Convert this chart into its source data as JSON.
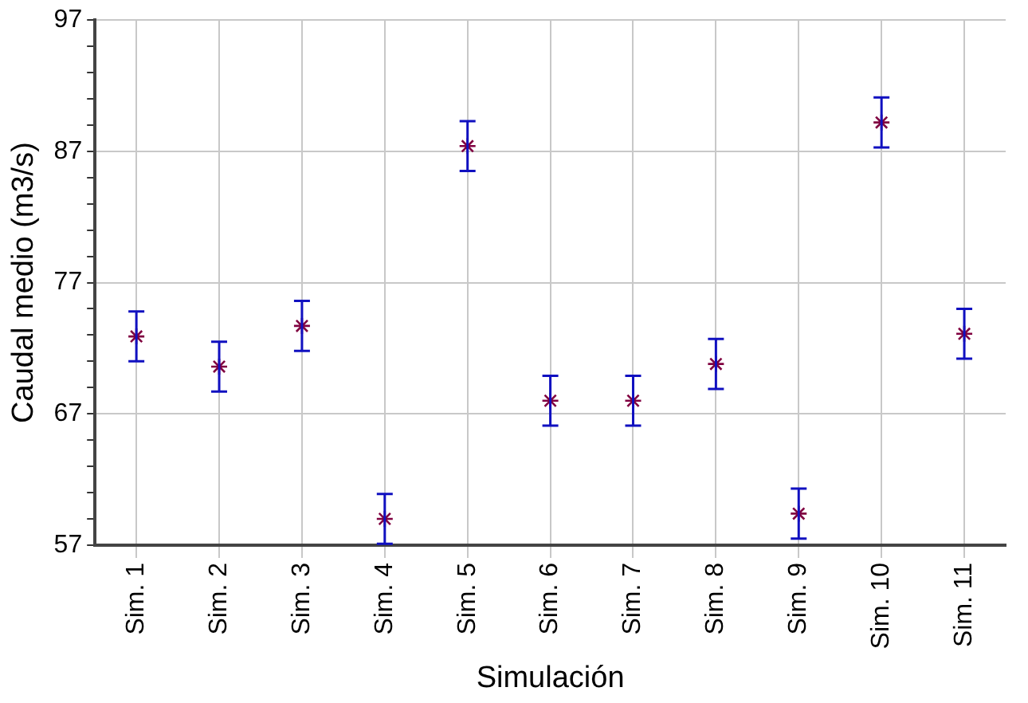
{
  "chart_data": {
    "type": "scatter",
    "xlabel": "Simulación",
    "ylabel": "Caudal medio (m3/s)",
    "categories": [
      "Sim. 1",
      "Sim. 2",
      "Sim. 3",
      "Sim. 4",
      "Sim. 5",
      "Sim. 6",
      "Sim. 7",
      "Sim. 8",
      "Sim. 9",
      "Sim. 10",
      "Sim. 11"
    ],
    "series": [
      {
        "color": "#800040",
        "values": [
          72.9,
          70.6,
          73.7,
          59.0,
          87.4,
          68.0,
          68.0,
          70.8,
          59.4,
          89.2,
          73.1
        ],
        "errors": [
          1.9,
          1.9,
          1.9,
          1.9,
          1.9,
          1.9,
          1.9,
          1.9,
          1.9,
          1.9,
          1.9
        ]
      }
    ],
    "ylim": [
      57,
      97
    ],
    "yticks": [
      57,
      {
        "value": 59,
        "label": null
      },
      {
        "value": 61,
        "label": null
      },
      {
        "value": 63,
        "label": null
      },
      {
        "value": 65,
        "label": null
      },
      67,
      {
        "value": 69,
        "label": null
      },
      {
        "value": 71,
        "label": null
      },
      {
        "value": 73,
        "label": null
      },
      {
        "value": 75,
        "label": null
      },
      77,
      {
        "value": 79,
        "label": null
      },
      {
        "value": 81,
        "label": null
      },
      {
        "value": 83,
        "label": null
      },
      {
        "value": 85,
        "label": null
      },
      87,
      {
        "value": 89,
        "label": null
      },
      {
        "value": 91,
        "label": null
      },
      {
        "value": 93,
        "label": null
      },
      {
        "value": 95,
        "label": null
      },
      97
    ],
    "grid": true,
    "marker": "cross",
    "legend": false
  }
}
